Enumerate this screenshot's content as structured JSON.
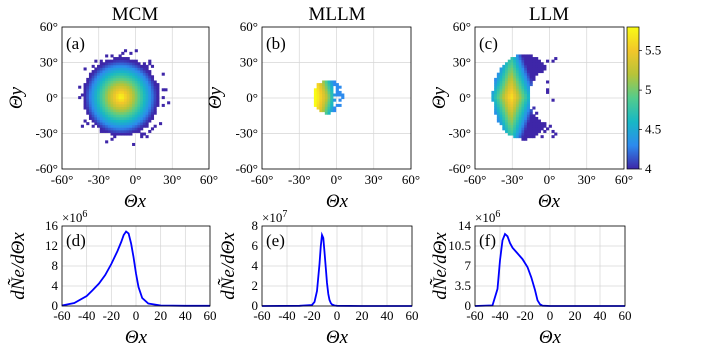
{
  "figure": {
    "colorbar": {
      "ticks": [
        "5.5",
        "5",
        "4.5",
        "4"
      ],
      "range": [
        4,
        5.8
      ],
      "colormap": [
        "#3e26a8",
        "#2d8bee",
        "#17b8c5",
        "#53cc8c",
        "#b7c438",
        "#f2c62a",
        "#f9fb15"
      ]
    },
    "line_color": "#0000ff",
    "grid": true
  },
  "chart_data": [
    {
      "type": "heatmap",
      "panel": "(a)",
      "title": "MCM",
      "xlabel": "Θx",
      "ylabel": "Θy",
      "xlim": [
        -60,
        60
      ],
      "ylim": [
        -60,
        60
      ],
      "xticks": [
        "-60°",
        "-30°",
        "0°",
        "30°",
        "60°"
      ],
      "yticks": [
        "60°",
        "30°",
        "0°",
        "-30°",
        "-60°"
      ],
      "blob": {
        "center": [
          -13,
          0
        ],
        "radius_x": 31,
        "radius_y": 33,
        "peak_value": 5.8,
        "edge_value": 4.0
      }
    },
    {
      "type": "heatmap",
      "panel": "(b)",
      "title": "MLLM",
      "xlabel": "Θx",
      "ylabel": "Θy",
      "xlim": [
        -60,
        60
      ],
      "ylim": [
        -60,
        60
      ],
      "xticks": [
        "-60°",
        "-30°",
        "0°",
        "30°",
        "60°"
      ],
      "yticks": [
        "60°",
        "30°",
        "0°",
        "-30°",
        "-60°"
      ],
      "blob": {
        "center": [
          -8,
          0
        ],
        "radius_x": 12,
        "radius_y": 14,
        "peak_value": 5.8,
        "edge_value": 4.3
      }
    },
    {
      "type": "heatmap",
      "panel": "(c)",
      "title": "LLM",
      "xlabel": "Θx",
      "ylabel": "Θy",
      "xlim": [
        -60,
        60
      ],
      "ylim": [
        -60,
        60
      ],
      "xticks": [
        "-60°",
        "-30°",
        "0°",
        "30°",
        "60°"
      ],
      "yticks": [
        "60°",
        "30°",
        "0°",
        "-30°",
        "-60°"
      ],
      "blob": {
        "center": [
          -22,
          0
        ],
        "radius_x": 25,
        "radius_y": 36,
        "peak_value": 5.7,
        "edge_value": 4.0
      }
    },
    {
      "type": "line",
      "panel": "(d)",
      "ylabel": "dÑe/dΘx",
      "xlabel": "Θx",
      "multiplier": "×10^6",
      "xlim": [
        -60,
        60
      ],
      "ylim": [
        0,
        16
      ],
      "xticks": [
        "-60",
        "-40",
        "-20",
        "0",
        "20",
        "40",
        "60"
      ],
      "yticks": [
        "0",
        "4",
        "8",
        "12",
        "16"
      ],
      "x": [
        -60,
        -50,
        -40,
        -35,
        -30,
        -25,
        -20,
        -15,
        -12,
        -10,
        -8,
        -6,
        -4,
        -2,
        0,
        2,
        5,
        10,
        20,
        40,
        60
      ],
      "y": [
        0.1,
        0.6,
        2.0,
        3.2,
        4.5,
        6.2,
        8.4,
        11.0,
        12.8,
        14.2,
        14.9,
        14.5,
        12.5,
        9.8,
        6.5,
        3.8,
        1.6,
        0.5,
        0.1,
        0.05,
        0.05
      ]
    },
    {
      "type": "line",
      "panel": "(e)",
      "ylabel": "dÑe/dΘx",
      "xlabel": "Θx",
      "multiplier": "×10^7",
      "xlim": [
        -60,
        60
      ],
      "ylim": [
        0,
        8
      ],
      "xticks": [
        "-60",
        "-40",
        "-20",
        "0",
        "20",
        "40",
        "60"
      ],
      "yticks": [
        "0",
        "2",
        "4",
        "6",
        "8"
      ],
      "x": [
        -60,
        -30,
        -20,
        -18,
        -16,
        -14,
        -13,
        -12,
        -11,
        -10,
        -9,
        -8,
        -7,
        -6,
        -5,
        -4,
        -2,
        0,
        20,
        60
      ],
      "y": [
        0,
        0.02,
        0.1,
        0.4,
        1.5,
        4.2,
        6.0,
        7.1,
        6.8,
        5.4,
        3.8,
        2.3,
        1.2,
        0.6,
        0.3,
        0.15,
        0.05,
        0.02,
        0,
        0
      ]
    },
    {
      "type": "line",
      "panel": "(f)",
      "ylabel": "dÑe/dΘx",
      "xlabel": "Θx",
      "multiplier": "×10^6",
      "xlim": [
        -60,
        60
      ],
      "ylim": [
        0,
        14
      ],
      "xticks": [
        "-60",
        "-40",
        "-20",
        "0",
        "20",
        "40",
        "60"
      ],
      "yticks": [
        "0",
        "3.5",
        "7",
        "10.5",
        "14"
      ],
      "x": [
        -60,
        -46,
        -42,
        -40,
        -38,
        -36,
        -34,
        -32,
        -30,
        -26,
        -22,
        -18,
        -15,
        -12,
        -10,
        -8,
        -6,
        0,
        60
      ],
      "y": [
        0,
        0.1,
        3.0,
        8.0,
        11.5,
        12.6,
        12.2,
        11.0,
        10.2,
        9.2,
        8.2,
        6.8,
        5.0,
        2.8,
        1.0,
        0.3,
        0.05,
        0,
        0
      ]
    }
  ]
}
